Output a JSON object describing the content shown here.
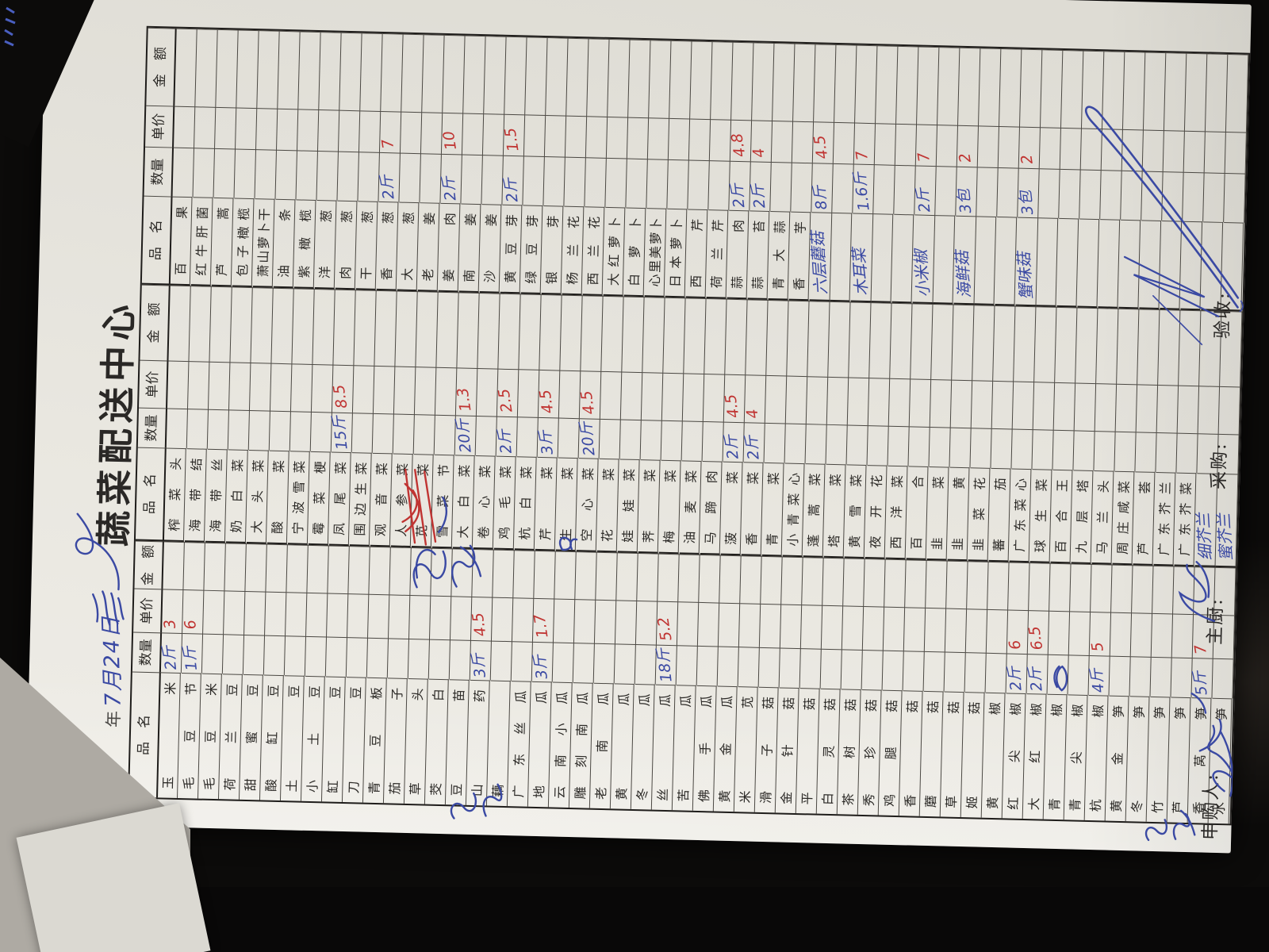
{
  "title": "蔬菜配送中心",
  "date": {
    "year_label": "年",
    "handwritten_date": "7月24日"
  },
  "footer": {
    "requester_label": "申购人:",
    "chef_label": "主厨:",
    "purchaser_label": "采购:",
    "inspector_label": "验收:"
  },
  "colors": {
    "paper": "#e9e7e0",
    "grid_line": "#4b4843",
    "red_ink": "#c03432",
    "blue_ink": "#3a49a3"
  },
  "annotations": [
    "date-crossout-scribble",
    "date-flourish-loop",
    "crossed-out-rows-red-x",
    "shanyao-blue-scribble",
    "kongxincai-blue-blob",
    "hangjiao-qty-blob",
    "left-margin-note",
    "bottom-margin-note",
    "requester-signature",
    "chef-signature-scribble",
    "inspector-signature-flourish"
  ],
  "table": {
    "header": {
      "name": "品　名",
      "qty": "数量",
      "price": "单价",
      "amount": "金　额"
    },
    "groups": [
      {
        "rows": [
          {
            "name": "玉米",
            "q": "2斤",
            "p": "3"
          },
          {
            "name": "毛豆节",
            "q": "1斤",
            "p": "6"
          },
          {
            "name": "毛豆米"
          },
          {
            "name": "荷兰豆"
          },
          {
            "name": "甜蜜豆"
          },
          {
            "name": "酸缸豆"
          },
          {
            "name": "土豆"
          },
          {
            "name": "小土豆"
          },
          {
            "name": "缸豆"
          },
          {
            "name": "刀豆"
          },
          {
            "name": "青豆板"
          },
          {
            "name": "茄子"
          },
          {
            "name": "草头"
          },
          {
            "name": "茭白"
          },
          {
            "name": "豆苗"
          },
          {
            "name": "山药",
            "q": "3斤",
            "p": "4.5"
          },
          {
            "name": "藕"
          },
          {
            "name": "广东丝瓜"
          },
          {
            "name": "地瓜",
            "q": "3斤",
            "p": "1.7"
          },
          {
            "name": "云南小瓜"
          },
          {
            "name": "雕刻南瓜"
          },
          {
            "name": "老南瓜"
          },
          {
            "name": "黄瓜"
          },
          {
            "name": "冬瓜"
          },
          {
            "name": "丝瓜",
            "q": "18斤",
            "p": "5.2"
          },
          {
            "name": "苦瓜"
          },
          {
            "name": "佛手瓜"
          },
          {
            "name": "黄金瓜"
          },
          {
            "name": "米苋"
          },
          {
            "name": "滑子菇"
          },
          {
            "name": "金针菇"
          },
          {
            "name": "平菇"
          },
          {
            "name": "白灵菇"
          },
          {
            "name": "茶树菇"
          },
          {
            "name": "秀珍菇"
          },
          {
            "name": "鸡腿菇"
          },
          {
            "name": "香菇"
          },
          {
            "name": "蘑菇"
          },
          {
            "name": "草菇"
          },
          {
            "name": "姬菇"
          },
          {
            "name": "黄椒"
          },
          {
            "name": "红尖椒",
            "q": "2斤",
            "p": "6"
          },
          {
            "name": "大红椒",
            "q": "2斤",
            "p": "6.5"
          },
          {
            "name": "青椒"
          },
          {
            "name": "青尖椒"
          },
          {
            "name": "杭椒",
            "q": "4斤",
            "p": "5"
          },
          {
            "name": "黄金笋"
          },
          {
            "name": "冬笋"
          },
          {
            "name": "竹笋"
          },
          {
            "name": "芦笋"
          },
          {
            "name": "香莴笋",
            "q": "5斤",
            "p": "7"
          },
          {
            "name": "水笋"
          }
        ]
      },
      {
        "rows": [
          {
            "name": "榨菜头"
          },
          {
            "name": "海带结"
          },
          {
            "name": "海带丝"
          },
          {
            "name": "奶白菜"
          },
          {
            "name": "大头菜"
          },
          {
            "name": "酸菜"
          },
          {
            "name": "宁波雪菜"
          },
          {
            "name": "霉菜梗"
          },
          {
            "name": "凤尾菜",
            "q": "15斤",
            "p": "8.5"
          },
          {
            "name": "围边生菜"
          },
          {
            "name": "观音菜"
          },
          {
            "name": "人参菜"
          },
          {
            "name": "苋菜"
          },
          {
            "name": "雪菜节"
          },
          {
            "name": "大白菜",
            "q": "20斤",
            "p": "1.3"
          },
          {
            "name": "卷心菜"
          },
          {
            "name": "鸡毛菜",
            "q": "2斤",
            "p": "2.5"
          },
          {
            "name": "杭白菜"
          },
          {
            "name": "芹菜",
            "q": "3斤",
            "p": "4.5"
          },
          {
            "name": "生菜"
          },
          {
            "name": "空心菜",
            "q": "20斤",
            "p": "4.5"
          },
          {
            "name": "花菜"
          },
          {
            "name": "娃娃菜"
          },
          {
            "name": "荠菜"
          },
          {
            "name": "梅菜"
          },
          {
            "name": "油麦菜"
          },
          {
            "name": "马蹄肉"
          },
          {
            "name": "菠菜",
            "q": "2斤",
            "p": "4.5"
          },
          {
            "name": "香菜",
            "q": "2斤",
            "p": "4"
          },
          {
            "name": "青菜"
          },
          {
            "name": "小青菜心"
          },
          {
            "name": "蓬蒿菜"
          },
          {
            "name": "塔菜"
          },
          {
            "name": "黄雪菜"
          },
          {
            "name": "夜开花"
          },
          {
            "name": "西洋菜"
          },
          {
            "name": "百合"
          },
          {
            "name": "韭菜"
          },
          {
            "name": "韭黄"
          },
          {
            "name": "韭菜花"
          },
          {
            "name": "蕃茄"
          },
          {
            "name": "广东菜心"
          },
          {
            "name": "球生菜"
          },
          {
            "name": "百合王"
          },
          {
            "name": "九层塔"
          },
          {
            "name": "马兰头"
          },
          {
            "name": "周庄咸菜"
          },
          {
            "name": "芦荟"
          },
          {
            "name": "广东芥兰"
          },
          {
            "name": "广东芥菜"
          },
          {
            "name": "细芥兰",
            "hand": true
          },
          {
            "name": "蜜芥兰",
            "hand": true
          }
        ]
      },
      {
        "rows": [
          {
            "name": "百果"
          },
          {
            "name": "红牛肝菌"
          },
          {
            "name": "芦蒿"
          },
          {
            "name": "包子橄榄"
          },
          {
            "name": "萧山萝卜干"
          },
          {
            "name": "油条"
          },
          {
            "name": "紫橄榄"
          },
          {
            "name": "洋葱"
          },
          {
            "name": "肉葱"
          },
          {
            "name": "干葱"
          },
          {
            "name": "香葱",
            "q": "2斤",
            "p": "7"
          },
          {
            "name": "大葱"
          },
          {
            "name": "老姜"
          },
          {
            "name": "姜肉",
            "q": "2斤",
            "p": "10"
          },
          {
            "name": "南姜"
          },
          {
            "name": "沙姜"
          },
          {
            "name": "黄豆芽",
            "q": "2斤",
            "p": "1.5"
          },
          {
            "name": "绿豆芽"
          },
          {
            "name": "银芽"
          },
          {
            "name": "杨兰花"
          },
          {
            "name": "西兰花"
          },
          {
            "name": "大红萝卜"
          },
          {
            "name": "白萝卜"
          },
          {
            "name": "心里美萝卜"
          },
          {
            "name": "日本萝卜"
          },
          {
            "name": "西芹"
          },
          {
            "name": "荷兰芹"
          },
          {
            "name": "蒜肉",
            "q": "2斤",
            "p": "4.8"
          },
          {
            "name": "蒜苔",
            "q": "2斤",
            "p": "4"
          },
          {
            "name": "青大蒜"
          },
          {
            "name": "香芋"
          },
          {
            "name": "六层蘑菇",
            "q": "8斤",
            "p": "4.5",
            "hand": true
          },
          {
            "name": ""
          },
          {
            "name": "木耳菜",
            "q": "1.6斤",
            "p": "7",
            "hand": true
          },
          {
            "name": ""
          },
          {
            "name": ""
          },
          {
            "name": "小米椒",
            "q": "2斤",
            "p": "7",
            "hand": true
          },
          {
            "name": ""
          },
          {
            "name": "海鲜菇",
            "q": "3包",
            "p": "2",
            "hand": true
          },
          {
            "name": ""
          },
          {
            "name": ""
          },
          {
            "name": "蟹味菇",
            "q": "3包",
            "p": "2",
            "hand": true
          },
          {
            "name": ""
          },
          {
            "name": ""
          },
          {
            "name": ""
          },
          {
            "name": ""
          },
          {
            "name": ""
          },
          {
            "name": ""
          },
          {
            "name": ""
          },
          {
            "name": ""
          },
          {
            "name": ""
          },
          {
            "name": ""
          }
        ]
      }
    ]
  }
}
